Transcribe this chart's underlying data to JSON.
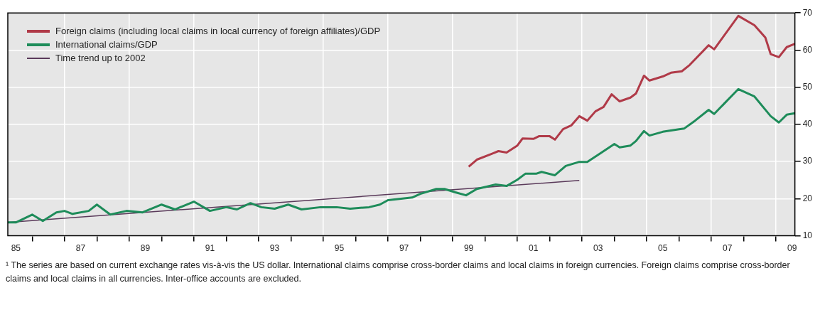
{
  "chart_data": {
    "type": "line",
    "series": [
      {
        "name": "Foreign claims (including local claims in local currency of foreign affiliates)/GDP",
        "color": "#b03a48",
        "x": [
          "1999-07",
          "1999-10",
          "2000-04",
          "2000-06",
          "2000-09",
          "2001-01",
          "2001-03",
          "2001-07",
          "2001-09",
          "2002-01",
          "2002-03",
          "2002-06",
          "2002-09",
          "2002-12",
          "2003-03",
          "2003-06",
          "2003-09",
          "2003-12",
          "2004-03",
          "2004-07",
          "2004-09",
          "2004-12",
          "2005-02",
          "2005-07",
          "2005-10",
          "2006-02",
          "2006-05",
          "2006-12",
          "2007-02",
          "2007-11",
          "2008-05",
          "2008-09",
          "2008-11",
          "2009-02",
          "2009-05",
          "2009-08"
        ],
        "values": [
          28.6,
          30.5,
          32.2,
          32.8,
          32.4,
          34.3,
          36.2,
          36.1,
          36.8,
          36.8,
          35.9,
          38.7,
          39.7,
          42.2,
          41.0,
          43.5,
          44.7,
          48.1,
          46.2,
          47.2,
          48.3,
          53.1,
          51.8,
          52.9,
          53.9,
          54.3,
          56.0,
          61.3,
          60.2,
          69.2,
          66.7,
          63.4,
          58.9,
          58.1,
          60.8,
          61.7
        ]
      },
      {
        "name": "International claims/GDP",
        "color": "#1e8c5a",
        "x": [
          "1985-04",
          "1985-07",
          "1986-01",
          "1986-05",
          "1986-10",
          "1987-01",
          "1987-04",
          "1987-10",
          "1988-01",
          "1988-06",
          "1988-12",
          "1989-06",
          "1990-01",
          "1990-06",
          "1991-01",
          "1991-07",
          "1992-01",
          "1992-05",
          "1992-10",
          "1993-02",
          "1993-07",
          "1993-12",
          "1994-05",
          "1994-12",
          "1995-06",
          "1995-11",
          "1996-06",
          "1996-10",
          "1997-01",
          "1997-10",
          "1998-01",
          "1998-07",
          "1998-10",
          "1999-02",
          "1999-06",
          "1999-10",
          "2000-05",
          "2000-09",
          "2001-01",
          "2001-04",
          "2001-08",
          "2001-10",
          "2002-03",
          "2002-07",
          "2002-12",
          "2003-03",
          "2003-07",
          "2004-01",
          "2004-03",
          "2004-07",
          "2004-09",
          "2004-12",
          "2005-02",
          "2005-07",
          "2006-01",
          "2006-03",
          "2006-07",
          "2006-12",
          "2007-02",
          "2007-11",
          "2008-05",
          "2008-11",
          "2009-02",
          "2009-05",
          "2009-08"
        ],
        "values": [
          13.6,
          13.6,
          15.7,
          14.0,
          16.3,
          16.7,
          15.9,
          16.7,
          18.4,
          15.7,
          16.7,
          16.3,
          18.4,
          17.1,
          19.2,
          16.7,
          17.7,
          17.1,
          18.8,
          17.7,
          17.3,
          18.4,
          17.1,
          17.7,
          17.7,
          17.3,
          17.7,
          18.4,
          19.6,
          20.3,
          21.3,
          22.6,
          22.6,
          21.7,
          20.9,
          22.6,
          23.8,
          23.4,
          25.1,
          26.7,
          26.7,
          27.2,
          26.3,
          28.8,
          29.9,
          29.9,
          31.8,
          34.7,
          33.8,
          34.3,
          35.5,
          38.2,
          37.0,
          38.0,
          38.7,
          38.9,
          41.0,
          43.9,
          42.8,
          49.5,
          47.5,
          42.2,
          40.5,
          42.6,
          43.0
        ]
      },
      {
        "name": "Time trend up to 2002",
        "color": "#5a3a5a",
        "x": [
          "1985-04",
          "2002-12"
        ],
        "values": [
          13.6,
          24.9
        ]
      }
    ],
    "xlim": [
      "1985-04",
      "2009-08"
    ],
    "xticks": [
      {
        "value": "1985-07",
        "label": "85"
      },
      {
        "value": "1986",
        "label": null
      },
      {
        "value": "1987",
        "label": null
      },
      {
        "value": "1987-07",
        "label": "87"
      },
      {
        "value": "1988",
        "label": null
      },
      {
        "value": "1989",
        "label": null
      },
      {
        "value": "1989-07",
        "label": "89"
      },
      {
        "value": "1990",
        "label": null
      },
      {
        "value": "1991",
        "label": null
      },
      {
        "value": "1991-07",
        "label": "91"
      },
      {
        "value": "1992",
        "label": null
      },
      {
        "value": "1993",
        "label": null
      },
      {
        "value": "1993-07",
        "label": "93"
      },
      {
        "value": "1994",
        "label": null
      },
      {
        "value": "1995",
        "label": null
      },
      {
        "value": "1995-07",
        "label": "95"
      },
      {
        "value": "1996",
        "label": null
      },
      {
        "value": "1997",
        "label": null
      },
      {
        "value": "1997-07",
        "label": "97"
      },
      {
        "value": "1998",
        "label": null
      },
      {
        "value": "1999",
        "label": null
      },
      {
        "value": "1999-07",
        "label": "99"
      },
      {
        "value": "2000",
        "label": null
      },
      {
        "value": "2001",
        "label": null
      },
      {
        "value": "2001-07",
        "label": "01"
      },
      {
        "value": "2002",
        "label": null
      },
      {
        "value": "2003",
        "label": null
      },
      {
        "value": "2003-07",
        "label": "03"
      },
      {
        "value": "2004",
        "label": null
      },
      {
        "value": "2005",
        "label": null
      },
      {
        "value": "2005-07",
        "label": "05"
      },
      {
        "value": "2006",
        "label": null
      },
      {
        "value": "2007",
        "label": null
      },
      {
        "value": "2007-07",
        "label": "07"
      },
      {
        "value": "2008",
        "label": null
      },
      {
        "value": "2009",
        "label": null
      },
      {
        "value": "2009-07",
        "label": "09"
      }
    ],
    "ylim": [
      10,
      70
    ],
    "yticks": [
      10,
      20,
      30,
      40,
      50,
      60,
      70
    ],
    "grid": true,
    "legend": "top left",
    "annotations": [
      "¹ The series are based on current exchange rates vis-à-vis the US dollar. International claims comprise cross-border claims and local claims in foreign currencies. Foreign claims comprise cross-border claims and local claims in all currencies. Inter-office accounts are excluded."
    ]
  }
}
